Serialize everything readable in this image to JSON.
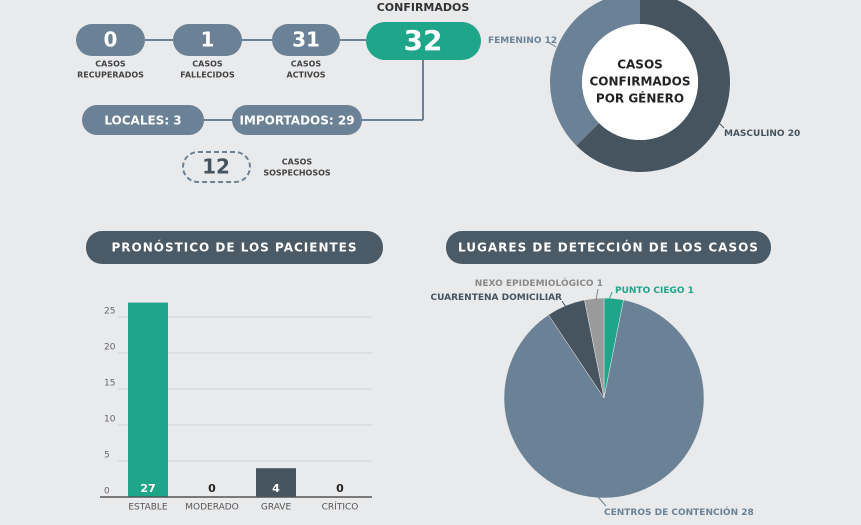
{
  "summary": {
    "confirmed": {
      "label": "CONFIRMADOS",
      "value": 32
    },
    "stats": [
      {
        "value": 0,
        "lines": [
          "CASOS",
          "RECUPERADOS"
        ]
      },
      {
        "value": 1,
        "lines": [
          "CASOS",
          "FALLECIDOS"
        ]
      },
      {
        "value": 31,
        "lines": [
          "CASOS",
          "ACTIVOS"
        ]
      }
    ],
    "origin": [
      "LOCALES: 3",
      "IMPORTADOS: 29"
    ],
    "suspected": {
      "value": 12,
      "lines": [
        "CASOS",
        "SOSPECHOSOS"
      ]
    }
  },
  "chart_data": [
    {
      "type": "donut",
      "title": [
        "CASOS",
        "CONFIRMADOS",
        "POR GÉNERO"
      ],
      "categories": [
        "MASCULINO",
        "FEMENINO"
      ],
      "values": [
        20,
        12
      ],
      "colors": [
        "#46545f",
        "#6b8296"
      ]
    },
    {
      "type": "bar",
      "title": "PRONÓSTICO DE LOS PACIENTES",
      "categories": [
        "ESTABLE",
        "MODERADO",
        "GRAVE",
        "CRÍTICO"
      ],
      "values": [
        27,
        0,
        4,
        0
      ],
      "colors": [
        "#1fa58a",
        "#1fa58a",
        "#46545f",
        "#46545f"
      ],
      "ylim": [
        0,
        28
      ],
      "yticks": [
        0,
        5,
        10,
        15,
        20,
        25
      ],
      "grid": true
    },
    {
      "type": "pie",
      "title": "LUGARES DE DETECCIÓN DE LOS CASOS",
      "categories": [
        "PUNTO CIEGO",
        "CENTROS DE CONTENCIÓN",
        "CUARENTENA DOMICILIAR",
        "NEXO EPIDEMIOLÓGICO"
      ],
      "values": [
        1,
        28,
        2,
        1
      ],
      "value_labels": [
        "1",
        "28",
        null,
        "1"
      ],
      "colors": [
        "#1fa58a",
        "#6b8296",
        "#46545f",
        "#9a9a9a"
      ]
    }
  ]
}
